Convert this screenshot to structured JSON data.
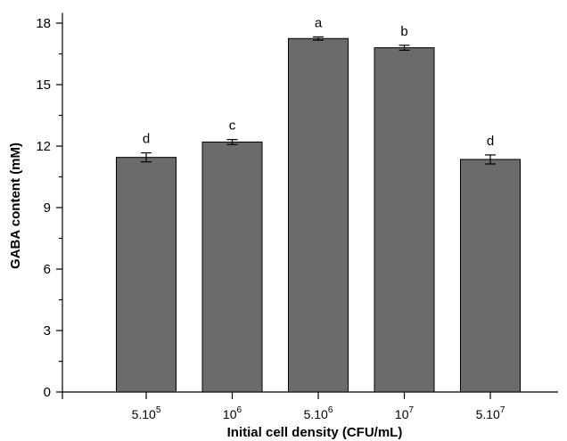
{
  "chart_data": {
    "type": "bar",
    "categories": [
      {
        "base": "5.10",
        "exp": "5"
      },
      {
        "base": "10",
        "exp": "6"
      },
      {
        "base": "5.10",
        "exp": "6"
      },
      {
        "base": "10",
        "exp": "7"
      },
      {
        "base": "5.10",
        "exp": "7"
      }
    ],
    "values": [
      11.45,
      12.2,
      17.25,
      16.8,
      11.35
    ],
    "errors": [
      0.22,
      0.12,
      0.08,
      0.12,
      0.22
    ],
    "significance": [
      "d",
      "c",
      "a",
      "b",
      "d"
    ],
    "xlabel": "Initial cell density (CFU/mL)",
    "ylabel": "GABA content (mM)",
    "ylim": [
      0,
      18.5
    ],
    "yticks": [
      0,
      3,
      6,
      9,
      12,
      15,
      18
    ],
    "grid": false,
    "colors": {
      "bar": "#6b6b6b",
      "bar_edge": "#000000",
      "axis": "#000000"
    }
  }
}
